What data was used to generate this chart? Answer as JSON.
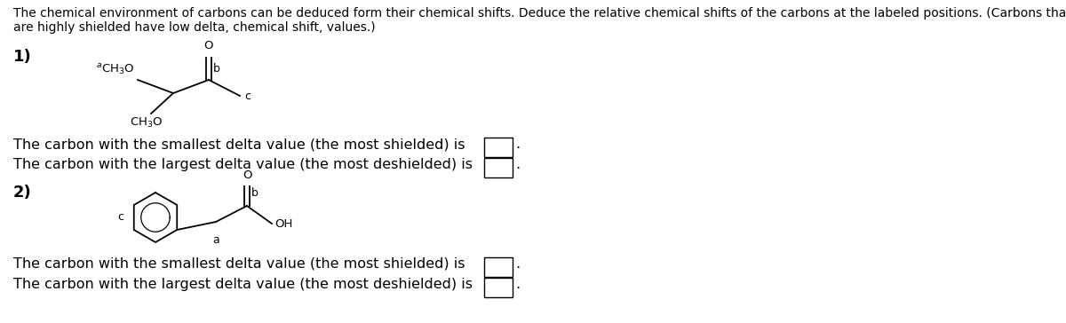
{
  "bg_color": "#ffffff",
  "text_color": "#000000",
  "title_line1": "The chemical environment of carbons can be deduced form their chemical shifts. Deduce the relative chemical shifts of the carbons at the labeled positions. (Carbons that",
  "title_line2": "are highly shielded have low delta, chemical shift, values.)",
  "sec1_label": "1)",
  "sec2_label": "2)",
  "q_smallest": "The carbon with the smallest delta value (the most shielded) is",
  "q_largest": "The carbon with the largest delta value (the most deshielded) is",
  "font_size_title": 10.0,
  "font_size_body": 11.5,
  "font_size_section": 13,
  "font_size_mol": 9.5,
  "font_size_mol_label": 9.0
}
